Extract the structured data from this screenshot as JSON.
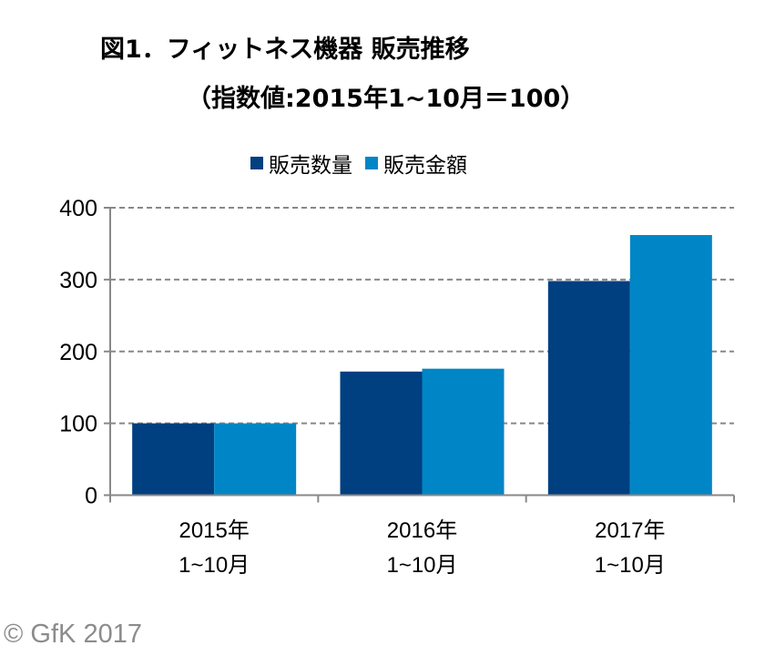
{
  "chart_data": {
    "type": "bar",
    "title": "図1．フィットネス機器 販売推移",
    "subtitle": "（指数値:2015年1~10月＝100）",
    "categories": [
      [
        "2015年",
        "1~10月"
      ],
      [
        "2016年",
        "1~10月"
      ],
      [
        "2017年",
        "1~10月"
      ]
    ],
    "series": [
      {
        "name": "販売数量",
        "color": "#003f80",
        "values": [
          100,
          172,
          298
        ]
      },
      {
        "name": "販売金額",
        "color": "#0086c6",
        "values": [
          100,
          176,
          362
        ]
      }
    ],
    "ylim": [
      0,
      400
    ],
    "yticks": [
      0,
      100,
      200,
      300,
      400
    ],
    "grid": true,
    "grid_style": "dashed",
    "legend": "top",
    "xlabel": "",
    "ylabel": ""
  },
  "copyright": "© GfK 2017"
}
